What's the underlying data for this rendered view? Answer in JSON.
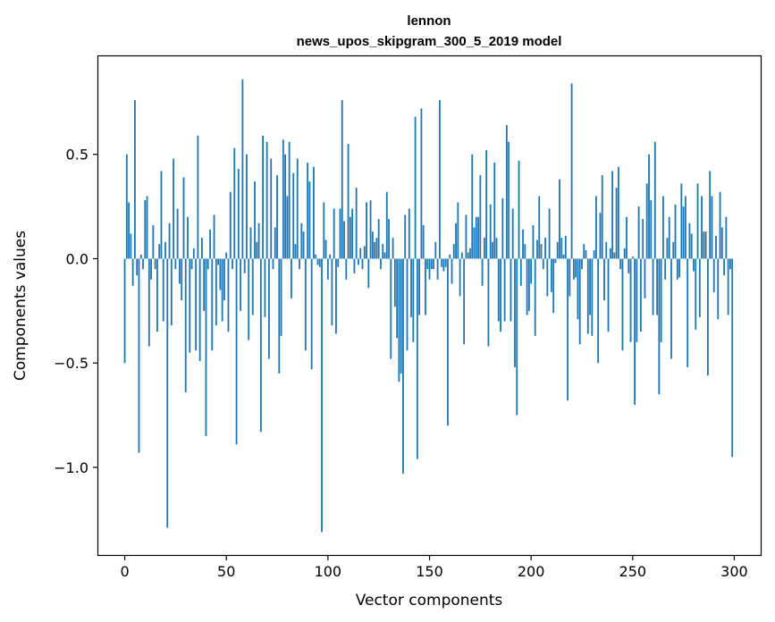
{
  "chart_data": {
    "type": "bar",
    "title": "lennon",
    "subtitle": "news_upos_skipgram_300_5_2019 model",
    "xlabel": "Vector components",
    "ylabel": "Components values",
    "xlim": [
      -13,
      313
    ],
    "ylim": [
      -1.42,
      0.97
    ],
    "xticks": [
      0,
      50,
      100,
      150,
      200,
      250,
      300
    ],
    "yticks": [
      0.5,
      0.0,
      -0.5,
      -1.0
    ],
    "ytick_labels": [
      "0.5",
      "0.0",
      "−0.5",
      "−1.0"
    ],
    "bar_color": "#1f77b4",
    "grid": false,
    "values": [
      -0.5,
      0.5,
      0.27,
      0.12,
      -0.13,
      0.76,
      -0.08,
      -0.93,
      0.02,
      -0.05,
      0.28,
      0.3,
      -0.42,
      -0.1,
      0.16,
      -0.05,
      -0.35,
      0.07,
      0.42,
      -0.3,
      0.08,
      -1.29,
      0.17,
      -0.32,
      0.48,
      -0.05,
      0.24,
      -0.12,
      -0.2,
      0.39,
      -0.64,
      0.2,
      -0.45,
      -0.05,
      0.05,
      -0.44,
      0.59,
      -0.49,
      0.1,
      -0.25,
      -0.85,
      -0.05,
      0.14,
      -0.44,
      0.21,
      -0.32,
      -0.03,
      -0.15,
      -0.3,
      -0.2,
      0.03,
      -0.35,
      0.32,
      -0.05,
      0.53,
      -0.89,
      0.43,
      -0.25,
      0.86,
      -0.07,
      0.5,
      -0.39,
      0.15,
      -0.27,
      0.37,
      0.08,
      0.17,
      -0.83,
      0.59,
      -0.28,
      0.56,
      -0.48,
      0.48,
      -0.05,
      0.15,
      0.4,
      -0.55,
      -0.37,
      0.57,
      0.5,
      0.3,
      0.56,
      -0.19,
      0.41,
      0.07,
      0.48,
      -0.05,
      0.17,
      0.13,
      -0.44,
      0.46,
      0.37,
      -0.53,
      0.44,
      0.02,
      -0.03,
      -0.04,
      -1.31,
      0.27,
      0.09,
      -0.1,
      0.02,
      -0.32,
      0.24,
      -0.36,
      -0.04,
      0.24,
      0.76,
      0.18,
      -0.1,
      0.55,
      0.2,
      0.24,
      -0.07,
      0.34,
      -0.03,
      0.05,
      -0.05,
      0.06,
      0.27,
      -0.14,
      0.28,
      0.13,
      0.08,
      0.1,
      0.19,
      -0.05,
      0.07,
      0.03,
      0.32,
      0.19,
      -0.48,
      0.1,
      -0.23,
      -0.38,
      -0.59,
      -0.55,
      -1.03,
      0.21,
      -0.44,
      0.24,
      -0.28,
      -0.4,
      0.68,
      -0.96,
      -0.27,
      0.72,
      0.16,
      -0.27,
      -0.05,
      -0.1,
      -0.05,
      -0.05,
      0.08,
      -0.1,
      0.76,
      -0.04,
      -0.06,
      -0.04,
      -0.8,
      0.02,
      -0.12,
      0.07,
      0.17,
      0.27,
      -0.18,
      0.03,
      -0.41,
      0.21,
      0.03,
      0.05,
      0.5,
      0.15,
      0.2,
      0.2,
      0.4,
      -0.13,
      0.1,
      0.52,
      -0.42,
      0.26,
      0.08,
      0.46,
      0.1,
      -0.3,
      -0.35,
      0.29,
      -0.3,
      0.64,
      0.56,
      -0.3,
      0.24,
      -0.52,
      -0.75,
      0.47,
      -0.13,
      0.14,
      0.07,
      -0.27,
      -0.25,
      -0.12,
      0.16,
      -0.37,
      0.09,
      0.3,
      0.07,
      -0.05,
      0.1,
      -0.18,
      0.24,
      -0.16,
      -0.26,
      -0.02,
      0.08,
      0.38,
      0.1,
      0.02,
      0.11,
      -0.68,
      -0.18,
      0.84,
      -0.1,
      -0.09,
      -0.29,
      -0.41,
      -0.05,
      0.07,
      0.04,
      -0.36,
      -0.27,
      -0.37,
      0.04,
      0.3,
      -0.5,
      0.22,
      0.4,
      -0.2,
      0.08,
      -0.35,
      0.05,
      0.42,
      0.03,
      0.34,
      0.44,
      -0.05,
      -0.44,
      0.05,
      0.2,
      -0.07,
      -0.4,
      0.01,
      -0.7,
      -0.4,
      0.25,
      -0.35,
      0.19,
      -0.19,
      0.36,
      0.5,
      0.28,
      -0.27,
      0.56,
      -0.27,
      -0.65,
      -0.4,
      0.3,
      -0.1,
      0.1,
      0.2,
      -0.48,
      0.08,
      0.26,
      -0.1,
      -0.09,
      0.36,
      0.25,
      0.3,
      -0.52,
      0.17,
      0.12,
      -0.06,
      -0.34,
      0.36,
      -0.28,
      0.3,
      0.13,
      0.13,
      -0.56,
      0.42,
      0.3,
      -0.16,
      0.11,
      -0.29,
      0.32,
      0.15,
      -0.08,
      0.2,
      -0.27,
      -0.05,
      -0.95
    ]
  }
}
